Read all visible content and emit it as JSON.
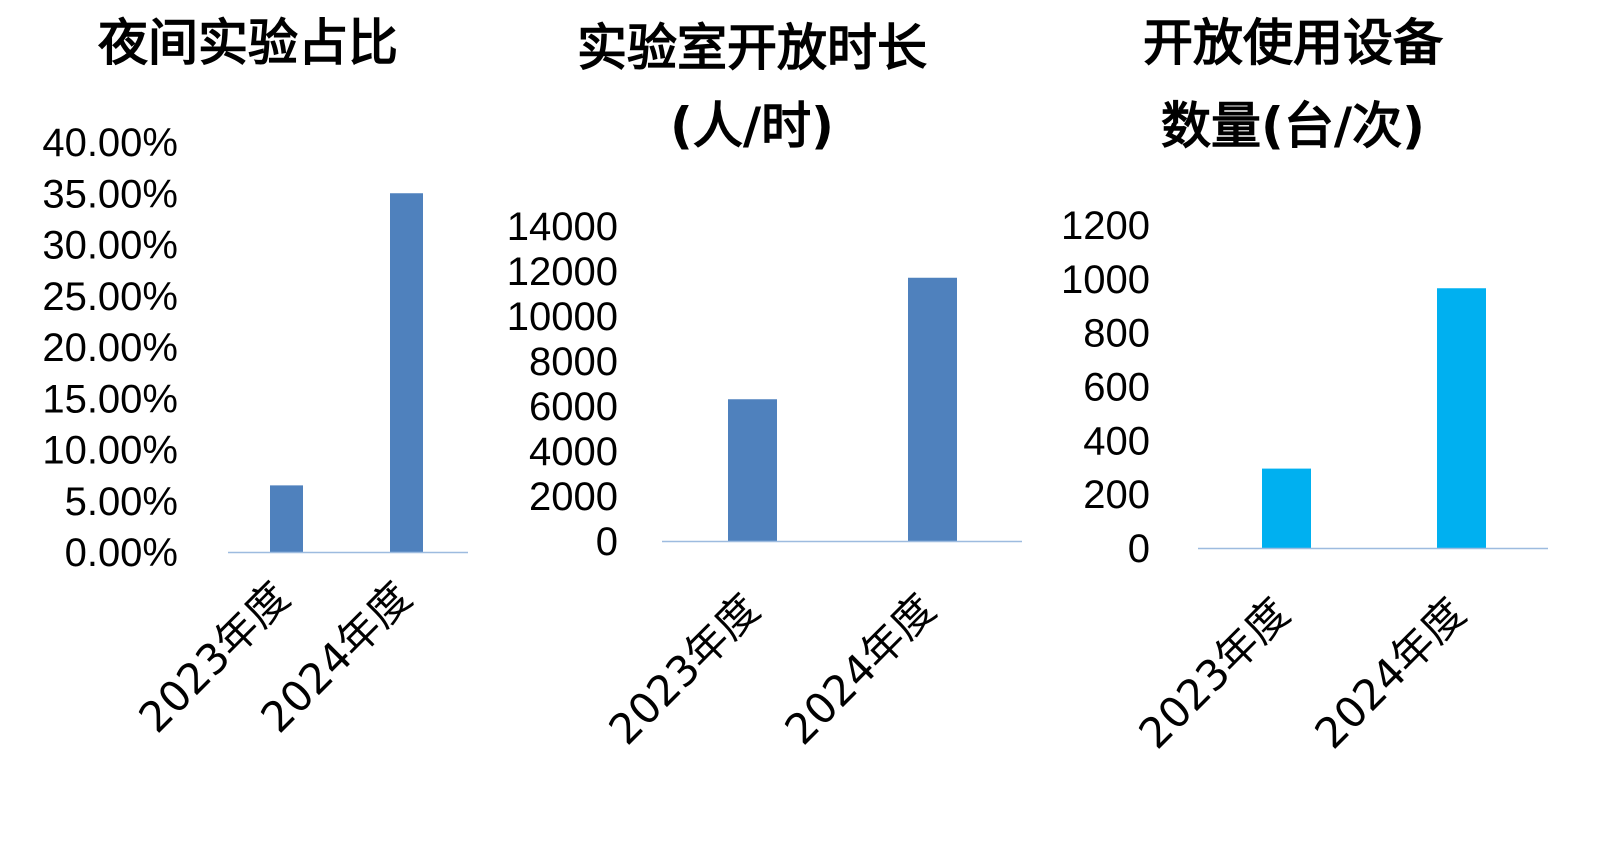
{
  "chart_data": [
    {
      "type": "bar",
      "title_lines": [
        "夜间实验占比"
      ],
      "categories": [
        "2023年度",
        "2024年度"
      ],
      "values": [
        0.065,
        0.35
      ],
      "ylim": [
        0,
        0.4
      ],
      "yticks": [
        0,
        0.05,
        0.1,
        0.15,
        0.2,
        0.25,
        0.3,
        0.35,
        0.4
      ],
      "ytick_labels": [
        "0.00%",
        "5.00%",
        "10.00%",
        "15.00%",
        "20.00%",
        "25.00%",
        "30.00%",
        "35.00%",
        "40.00%"
      ],
      "bar_color": "#4f81bd",
      "axis_color": "#9dbbdf",
      "grid": false,
      "legend": "none"
    },
    {
      "type": "bar",
      "title_lines": [
        "实验室开放时长",
        "(人/时)"
      ],
      "categories": [
        "2023年度",
        "2024年度"
      ],
      "values": [
        6300,
        11700
      ],
      "ylim": [
        0,
        14000
      ],
      "yticks": [
        0,
        2000,
        4000,
        6000,
        8000,
        10000,
        12000,
        14000
      ],
      "ytick_labels": [
        "0",
        "2000",
        "4000",
        "6000",
        "8000",
        "10000",
        "12000",
        "14000"
      ],
      "bar_color": "#4f81bd",
      "axis_color": "#9dbbdf",
      "grid": false,
      "legend": "none"
    },
    {
      "type": "bar",
      "title_lines": [
        "开放使用设备",
        "数量(台/次)"
      ],
      "categories": [
        "2023年度",
        "2024年度"
      ],
      "values": [
        295,
        965
      ],
      "ylim": [
        0,
        1200
      ],
      "yticks": [
        0,
        200,
        400,
        600,
        800,
        1000,
        1200
      ],
      "ytick_labels": [
        "0",
        "200",
        "400",
        "600",
        "800",
        "1000",
        "1200"
      ],
      "bar_color": "#00b0f0",
      "axis_color": "#9dbbdf",
      "grid": false,
      "legend": "none"
    }
  ]
}
